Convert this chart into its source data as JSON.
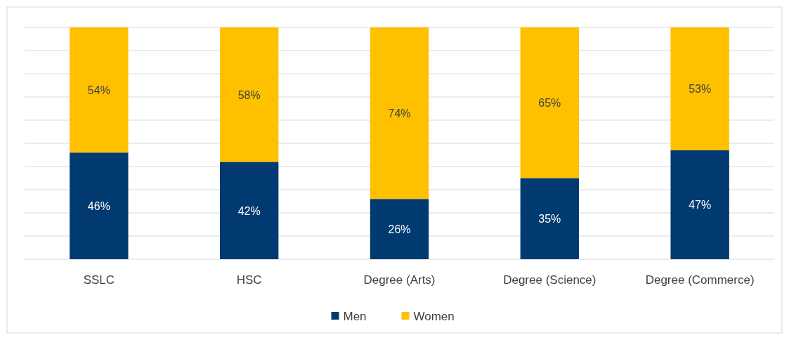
{
  "chart_data": {
    "type": "bar",
    "stacked": true,
    "categories": [
      "SSLC",
      "HSC",
      "Degree (Arts)",
      "Degree (Science)",
      "Degree (Commerce)"
    ],
    "series": [
      {
        "name": "Men",
        "color": "#003a70",
        "values": [
          46,
          42,
          26,
          35,
          47
        ],
        "value_labels": [
          "46%",
          "42%",
          "26%",
          "35%",
          "47%"
        ]
      },
      {
        "name": "Women",
        "color": "#ffc000",
        "values": [
          54,
          58,
          74,
          65,
          53
        ],
        "value_labels": [
          "54%",
          "58%",
          "74%",
          "65%",
          "53%"
        ]
      }
    ],
    "grid": "y",
    "tick_labels": "x",
    "legend": "bottom"
  }
}
